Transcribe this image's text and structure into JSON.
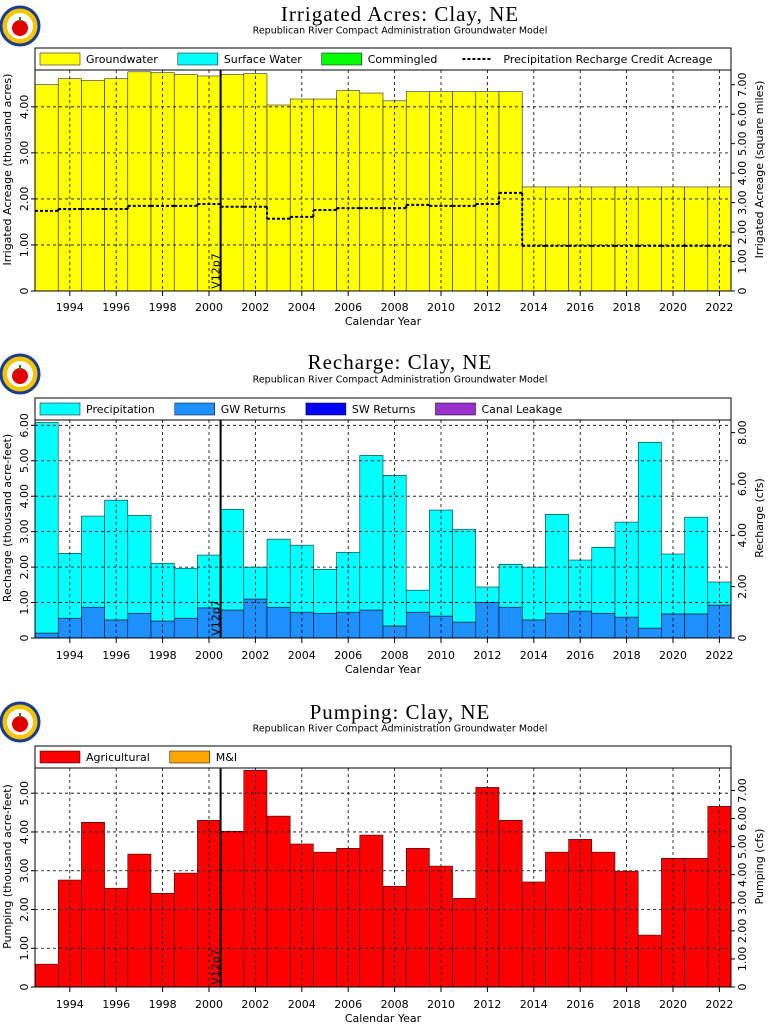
{
  "chart_data": [
    {
      "type": "bar",
      "stacked": true,
      "title": "Irrigated Acres: Clay, NE",
      "subtitle": "Republican River Compact Administration Groundwater Model",
      "xlabel": "Calendar Year",
      "ylabel": "Irrigated Acreage (thousand acres)",
      "y2label": "Irrigated Acreage (square miles)",
      "x": [
        1993,
        1994,
        1995,
        1996,
        1997,
        1998,
        1999,
        2000,
        2001,
        2002,
        2003,
        2004,
        2005,
        2006,
        2007,
        2008,
        2009,
        2010,
        2011,
        2012,
        2013,
        2014,
        2015,
        2016,
        2017,
        2018,
        2019,
        2020,
        2021,
        2022
      ],
      "xlim": [
        1992.5,
        2022.5
      ],
      "xticks": [
        1994,
        1996,
        1998,
        2000,
        2002,
        2004,
        2006,
        2008,
        2010,
        2012,
        2014,
        2016,
        2018,
        2020,
        2022
      ],
      "ylim": [
        0,
        4.8
      ],
      "yticks": [
        0,
        {
          "value": 1,
          "label": "1.00"
        },
        {
          "value": 2,
          "label": "2.00"
        },
        {
          "value": 3,
          "label": "3.00"
        },
        {
          "value": 4,
          "label": "4.00"
        }
      ],
      "y2lim": [
        0,
        7.5
      ],
      "y2ticks": [
        0,
        {
          "value": 1,
          "label": "1.00"
        },
        {
          "value": 2,
          "label": "2.00"
        },
        {
          "value": 3,
          "label": "3.00"
        },
        {
          "value": 4,
          "label": "4.00"
        },
        {
          "value": 5,
          "label": "5.00"
        },
        {
          "value": 6,
          "label": "6.00"
        },
        {
          "value": 7,
          "label": "7.00"
        }
      ],
      "grid": true,
      "annotation": {
        "text": "V12p7",
        "x": 2000.5
      },
      "series": [
        {
          "name": "Groundwater",
          "color": "#ffff00",
          "values": [
            4.48,
            4.61,
            4.57,
            4.61,
            4.76,
            4.74,
            4.7,
            4.67,
            4.7,
            4.72,
            4.04,
            4.17,
            4.17,
            4.35,
            4.3,
            4.13,
            4.33,
            4.33,
            4.33,
            4.33,
            4.33,
            2.26,
            2.26,
            2.26,
            2.26,
            2.26,
            2.26,
            2.26,
            2.26,
            2.26
          ]
        },
        {
          "name": "Surface Water",
          "color": "#00ffff",
          "values": [
            0,
            0,
            0,
            0,
            0,
            0,
            0,
            0,
            0,
            0,
            0,
            0,
            0,
            0,
            0,
            0,
            0,
            0,
            0,
            0,
            0,
            0,
            0,
            0,
            0,
            0,
            0,
            0,
            0,
            0
          ]
        },
        {
          "name": "Commingled",
          "color": "#00ff00",
          "values": [
            0,
            0,
            0,
            0,
            0,
            0,
            0,
            0,
            0,
            0,
            0,
            0,
            0,
            0,
            0,
            0,
            0,
            0,
            0,
            0,
            0,
            0,
            0,
            0,
            0,
            0,
            0,
            0,
            0,
            0
          ]
        },
        {
          "name": "Precipitation Recharge Credit Acreage",
          "type": "line",
          "linestyle": "dashed",
          "color": "#000000",
          "values": [
            1.74,
            1.78,
            1.78,
            1.78,
            1.85,
            1.85,
            1.85,
            1.89,
            1.83,
            1.83,
            1.57,
            1.61,
            1.76,
            1.8,
            1.8,
            1.8,
            1.87,
            1.85,
            1.85,
            1.89,
            2.13,
            0.98,
            0.98,
            0.98,
            0.98,
            0.98,
            0.98,
            0.98,
            0.98,
            0.98
          ]
        }
      ]
    },
    {
      "type": "bar",
      "stacked": true,
      "title": "Recharge: Clay, NE",
      "subtitle": "Republican River Compact Administration Groundwater Model",
      "xlabel": "Calendar Year",
      "ylabel": "Recharge (thousand acre-feet)",
      "y2label": "Recharge (cfs)",
      "x": [
        1993,
        1994,
        1995,
        1996,
        1997,
        1998,
        1999,
        2000,
        2001,
        2002,
        2003,
        2004,
        2005,
        2006,
        2007,
        2008,
        2009,
        2010,
        2011,
        2012,
        2013,
        2014,
        2015,
        2016,
        2017,
        2018,
        2019,
        2020,
        2021,
        2022
      ],
      "xlim": [
        1992.5,
        2022.5
      ],
      "xticks": [
        1994,
        1996,
        1998,
        2000,
        2002,
        2004,
        2006,
        2008,
        2010,
        2012,
        2014,
        2016,
        2018,
        2020,
        2022
      ],
      "ylim": [
        0,
        6.15
      ],
      "yticks": [
        0,
        {
          "value": 1,
          "label": "1.00"
        },
        {
          "value": 2,
          "label": "2.00"
        },
        {
          "value": 3,
          "label": "3.00"
        },
        {
          "value": 4,
          "label": "4.00"
        },
        {
          "value": 5,
          "label": "5.00"
        },
        {
          "value": 6,
          "label": "6.00"
        }
      ],
      "y2lim": [
        0,
        8.49
      ],
      "y2ticks": [
        0,
        {
          "value": 2,
          "label": "2.00"
        },
        {
          "value": 4,
          "label": "4.00"
        },
        {
          "value": 6,
          "label": "6.00"
        },
        {
          "value": 8,
          "label": "8.00"
        }
      ],
      "grid": true,
      "annotation": {
        "text": "V12p7",
        "x": 2000.5
      },
      "series": [
        {
          "name": "GW Returns",
          "color": "#1e90ff",
          "values": [
            0.14,
            0.56,
            0.87,
            0.51,
            0.7,
            0.48,
            0.56,
            0.85,
            0.79,
            1.1,
            0.87,
            0.73,
            0.7,
            0.73,
            0.79,
            0.34,
            0.73,
            0.62,
            0.45,
            1.01,
            0.87,
            0.51,
            0.7,
            0.76,
            0.7,
            0.59,
            0.28,
            0.68,
            0.68,
            0.93
          ]
        },
        {
          "name": "SW Returns",
          "color": "#0000ff",
          "values": [
            0,
            0,
            0,
            0,
            0,
            0,
            0,
            0,
            0,
            0,
            0,
            0,
            0,
            0,
            0,
            0,
            0,
            0,
            0,
            0,
            0,
            0,
            0,
            0,
            0,
            0,
            0,
            0,
            0,
            0
          ]
        },
        {
          "name": "Canal Leakage",
          "color": "#9932cc",
          "values": [
            0,
            0,
            0,
            0,
            0,
            0,
            0,
            0,
            0,
            0,
            0,
            0,
            0,
            0,
            0,
            0,
            0,
            0,
            0,
            0,
            0,
            0,
            0,
            0,
            0,
            0,
            0,
            0,
            0,
            0
          ]
        },
        {
          "name": "Precipitation",
          "color": "#00ffff",
          "values": [
            5.94,
            1.83,
            2.57,
            3.38,
            2.76,
            1.63,
            1.41,
            1.49,
            2.84,
            0.9,
            1.92,
            1.89,
            1.24,
            1.69,
            4.36,
            4.25,
            0.62,
            2.99,
            2.62,
            0.43,
            1.21,
            1.49,
            2.79,
            1.44,
            1.86,
            2.68,
            5.24,
            1.69,
            2.73,
            0.65
          ]
        }
      ],
      "legend_order": [
        3,
        0,
        1,
        2
      ]
    },
    {
      "type": "bar",
      "stacked": true,
      "title": "Pumping: Clay, NE",
      "subtitle": "Republican River Compact Administration Groundwater Model",
      "xlabel": "Calendar Year",
      "ylabel": "Pumping (thousand acre-feet)",
      "y2label": "Pumping (cfs)",
      "x": [
        1993,
        1994,
        1995,
        1996,
        1997,
        1998,
        1999,
        2000,
        2001,
        2002,
        2003,
        2004,
        2005,
        2006,
        2007,
        2008,
        2009,
        2010,
        2011,
        2012,
        2013,
        2014,
        2015,
        2016,
        2017,
        2018,
        2019,
        2020,
        2021,
        2022
      ],
      "xlim": [
        1992.5,
        2022.5
      ],
      "xticks": [
        1994,
        1996,
        1998,
        2000,
        2002,
        2004,
        2006,
        2008,
        2010,
        2012,
        2014,
        2016,
        2018,
        2020,
        2022
      ],
      "ylim": [
        0,
        5.65
      ],
      "yticks": [
        0,
        {
          "value": 1,
          "label": "1.00"
        },
        {
          "value": 2,
          "label": "2.00"
        },
        {
          "value": 3,
          "label": "3.00"
        },
        {
          "value": 4,
          "label": "4.00"
        },
        {
          "value": 5,
          "label": "5.00"
        }
      ],
      "y2lim": [
        0,
        7.8
      ],
      "y2ticks": [
        0,
        {
          "value": 1,
          "label": "1.00"
        },
        {
          "value": 2,
          "label": "2.00"
        },
        {
          "value": 3,
          "label": "3.00"
        },
        {
          "value": 4,
          "label": "4.00"
        },
        {
          "value": 5,
          "label": "5.00"
        },
        {
          "value": 6,
          "label": "6.00"
        },
        {
          "value": 7,
          "label": "7.00"
        }
      ],
      "grid": true,
      "annotation": {
        "text": "V12p7",
        "x": 2000.5
      },
      "series": [
        {
          "name": "Agricultural",
          "color": "#ff0000",
          "values": [
            0.59,
            2.76,
            4.25,
            2.55,
            3.43,
            2.42,
            2.94,
            4.3,
            4.02,
            5.59,
            4.41,
            3.69,
            3.48,
            3.58,
            3.92,
            2.6,
            3.58,
            3.12,
            2.29,
            5.15,
            4.3,
            2.71,
            3.48,
            3.81,
            3.48,
            2.99,
            1.34,
            3.32,
            3.32,
            4.66
          ]
        },
        {
          "name": "M&I",
          "color": "#ffa500",
          "values": [
            0,
            0,
            0,
            0,
            0,
            0,
            0,
            0,
            0,
            0,
            0,
            0,
            0,
            0,
            0,
            0,
            0,
            0,
            0,
            0,
            0,
            0,
            0,
            0,
            0,
            0,
            0,
            0,
            0,
            0
          ]
        }
      ]
    }
  ]
}
